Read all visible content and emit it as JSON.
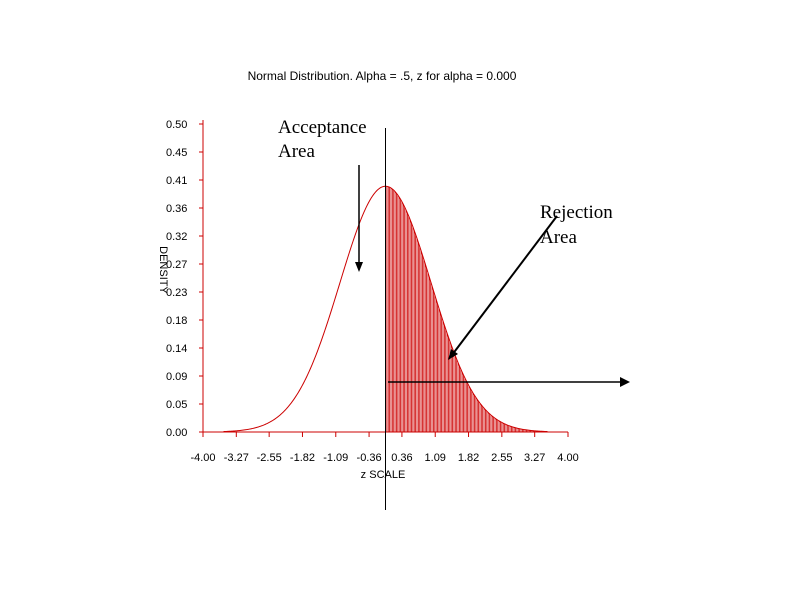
{
  "chart_data": {
    "type": "area",
    "title": "Normal Distribution. Alpha = .5, z for alpha = 0.000",
    "xlabel": "z SCALE",
    "ylabel": "DENSITY",
    "xlim": [
      -4.0,
      4.0
    ],
    "ylim": [
      0.0,
      0.5
    ],
    "x_ticks": [
      "-4.00",
      "-3.27",
      "-2.55",
      "-1.82",
      "-1.09",
      "-0.36",
      "0.36",
      "1.09",
      "1.82",
      "2.55",
      "3.27",
      "4.00"
    ],
    "y_ticks": [
      "0.00",
      "0.05",
      "0.09",
      "0.14",
      "0.18",
      "0.23",
      "0.27",
      "0.32",
      "0.36",
      "0.41",
      "0.45",
      "0.50"
    ],
    "curve": {
      "distribution": "standard normal",
      "mean": 0,
      "sd": 1,
      "peak_density": 0.399
    },
    "shaded_region": {
      "from_z": 0.0,
      "to_z": 3.5
    },
    "critical_z": 0.0,
    "color": "#cc0000",
    "annotations": [
      {
        "id": "acceptance",
        "lines": [
          "Acceptance",
          "Area"
        ]
      },
      {
        "id": "rejection",
        "lines": [
          "Rejection",
          "Area"
        ]
      }
    ]
  }
}
